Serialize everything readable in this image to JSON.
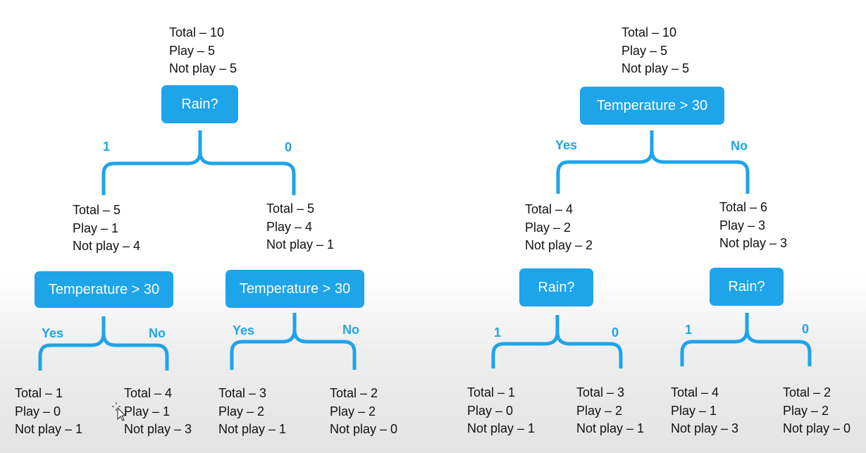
{
  "colors": {
    "accent": "#1ea4e9",
    "text": "#111111"
  },
  "left_tree": {
    "root": {
      "stats": [
        "Total – 10",
        "Play – 5",
        "Not play – 5"
      ],
      "question": "Rain?",
      "branch_left": "1",
      "branch_right": "0"
    },
    "left_child": {
      "stats": [
        "Total – 5",
        "Play – 1",
        "Not play – 4"
      ],
      "question": "Temperature > 30",
      "branch_left": "Yes",
      "branch_right": "No",
      "leaf_left": [
        "Total – 1",
        "Play – 0",
        "Not play – 1"
      ],
      "leaf_right": [
        "Total – 4",
        "Play – 1",
        "Not play – 3"
      ]
    },
    "right_child": {
      "stats": [
        "Total – 5",
        "Play – 4",
        "Not play – 1"
      ],
      "question": "Temperature > 30",
      "branch_left": "Yes",
      "branch_right": "No",
      "leaf_left": [
        "Total – 3",
        "Play – 2",
        "Not play – 1"
      ],
      "leaf_right": [
        "Total – 2",
        "Play – 2",
        "Not play – 0"
      ]
    }
  },
  "right_tree": {
    "root": {
      "stats": [
        "Total – 10",
        "Play – 5",
        "Not play – 5"
      ],
      "question": "Temperature > 30",
      "branch_left": "Yes",
      "branch_right": "No"
    },
    "left_child": {
      "stats": [
        "Total – 4",
        "Play – 2",
        "Not play – 2"
      ],
      "question": "Rain?",
      "branch_left": "1",
      "branch_right": "0",
      "leaf_left": [
        "Total – 1",
        "Play – 0",
        "Not play – 1"
      ],
      "leaf_right": [
        "Total – 3",
        "Play – 2",
        "Not play – 1"
      ]
    },
    "right_child": {
      "stats": [
        "Total – 6",
        "Play – 3",
        "Not play – 3"
      ],
      "question": "Rain?",
      "branch_left": "1",
      "branch_right": "0",
      "leaf_left": [
        "Total – 4",
        "Play – 1",
        "Not play – 3"
      ],
      "leaf_right": [
        "Total – 2",
        "Play – 2",
        "Not play – 0"
      ]
    }
  }
}
